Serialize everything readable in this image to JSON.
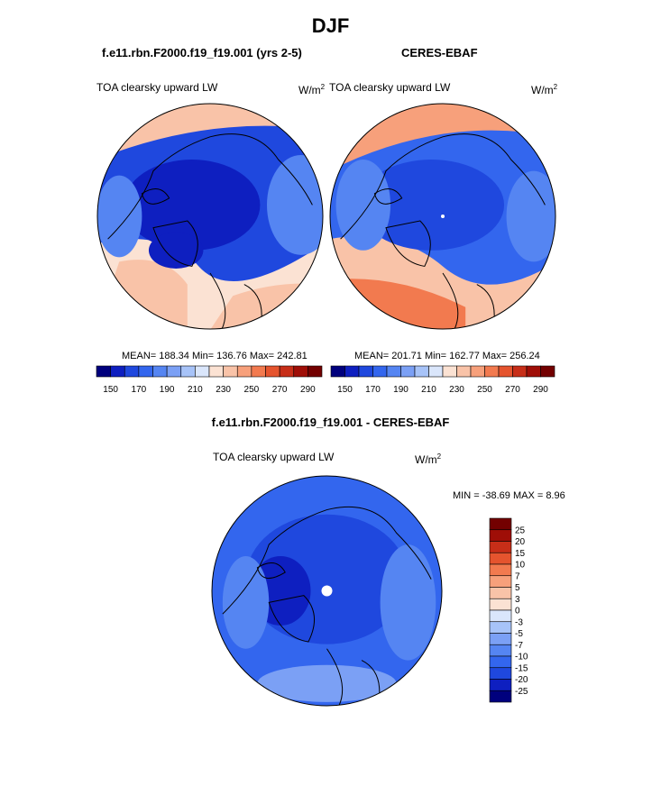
{
  "page": {
    "title": "DJF",
    "diff_title": "f.e11.rbn.F2000.f19_f19.001 - CERES-EBAF"
  },
  "chart_data": [
    {
      "type": "heatmap",
      "projection": "north-polar-stereographic",
      "case": "f.e11.rbn.F2000.f19_f19.001 (yrs 2-5)",
      "variable": "TOA clearsky upward LW",
      "units": "W/m",
      "units_sup": "2",
      "mean": 188.34,
      "min": 136.76,
      "max": 242.81,
      "stats_text": "MEAN= 188.34  Min= 136.76  Max= 242.81",
      "colorbar": {
        "levels": [
          150,
          160,
          170,
          180,
          190,
          200,
          210,
          220,
          230,
          240,
          250,
          260,
          270,
          280,
          290
        ],
        "tick_labels": [
          "150",
          "170",
          "190",
          "210",
          "230",
          "250",
          "270",
          "290"
        ],
        "colors": [
          "#00007d",
          "#0e1fc0",
          "#1f48de",
          "#3366ee",
          "#5585f2",
          "#7ba0f5",
          "#a7c3f8",
          "#dae6fb",
          "#fbe2d3",
          "#f9c3a8",
          "#f7a07b",
          "#f27a4f",
          "#e5542e",
          "#c72e18",
          "#9f0e07",
          "#730000"
        ]
      },
      "region_colors": [
        "#1f48de",
        "#3366ee",
        "#0e1fc0",
        "#5585f2",
        "#fbe2d3",
        "#f9c3a8",
        "#dae6fb"
      ]
    },
    {
      "type": "heatmap",
      "projection": "north-polar-stereographic",
      "case": "CERES-EBAF",
      "variable": "TOA clearsky upward LW",
      "units": "W/m",
      "units_sup": "2",
      "mean": 201.71,
      "min": 162.77,
      "max": 256.24,
      "stats_text": "MEAN= 201.71  Min= 162.77  Max= 256.24",
      "colorbar": {
        "levels": [
          150,
          160,
          170,
          180,
          190,
          200,
          210,
          220,
          230,
          240,
          250,
          260,
          270,
          280,
          290
        ],
        "tick_labels": [
          "150",
          "170",
          "190",
          "210",
          "230",
          "250",
          "270",
          "290"
        ],
        "colors": [
          "#00007d",
          "#0e1fc0",
          "#1f48de",
          "#3366ee",
          "#5585f2",
          "#7ba0f5",
          "#a7c3f8",
          "#dae6fb",
          "#fbe2d3",
          "#f9c3a8",
          "#f7a07b",
          "#f27a4f",
          "#e5542e",
          "#c72e18",
          "#9f0e07",
          "#730000"
        ]
      },
      "region_colors": [
        "#3366ee",
        "#5585f2",
        "#f7a07b",
        "#f9c3a8",
        "#dae6fb",
        "#1f48de",
        "#f27a4f"
      ]
    },
    {
      "type": "heatmap",
      "projection": "north-polar-stereographic",
      "case": "f.e11.rbn.F2000.f19_f19.001 - CERES-EBAF",
      "variable": "TOA clearsky upward LW",
      "units": "W/m",
      "units_sup": "2",
      "min": -38.69,
      "max": 8.96,
      "stats_text": "MIN = -38.69 MAX =   8.96",
      "colorbar": {
        "levels": [
          -25,
          -20,
          -15,
          -10,
          -7,
          -5,
          -3,
          0,
          3,
          5,
          7,
          10,
          15,
          20,
          25
        ],
        "tick_labels": [
          "25",
          "20",
          "15",
          "10",
          "7",
          "5",
          "3",
          "0",
          "-3",
          "-5",
          "-7",
          "-10",
          "-15",
          "-20",
          "-25"
        ],
        "colors": [
          "#00007d",
          "#0e1fc0",
          "#1f48de",
          "#3366ee",
          "#5585f2",
          "#7ba0f5",
          "#a7c3f8",
          "#dae6fb",
          "#fbe2d3",
          "#f9c3a8",
          "#f7a07b",
          "#f27a4f",
          "#e5542e",
          "#c72e18",
          "#9f0e07",
          "#730000"
        ]
      },
      "region_colors": [
        "#3366ee",
        "#1f48de",
        "#5585f2",
        "#0e1fc0",
        "#7ba0f5"
      ]
    }
  ]
}
